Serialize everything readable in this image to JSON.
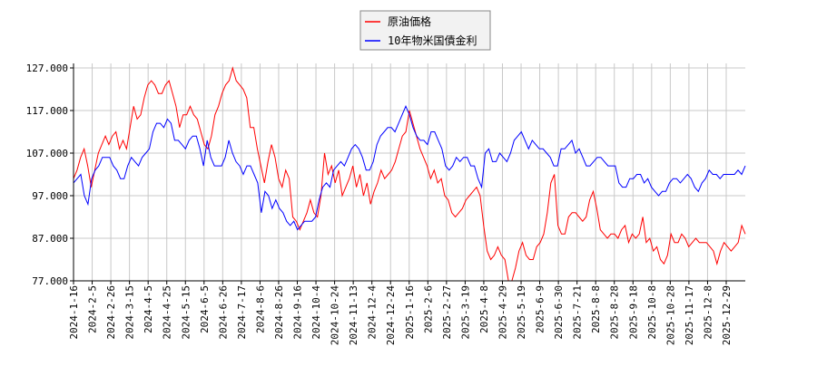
{
  "chart_data": {
    "type": "line",
    "title": "",
    "xlabel": "",
    "ylabel": "",
    "ylim": [
      77,
      127
    ],
    "y_ticks": [
      "77.000",
      "87.000",
      "97.000",
      "107.000",
      "117.000",
      "127.000"
    ],
    "grid": true,
    "legend_position": "top-center",
    "x_ticks": [
      "2024-1-16",
      "2024-2-5",
      "2024-2-26",
      "2024-3-15",
      "2024-4-5",
      "2024-4-25",
      "2024-5-15",
      "2024-6-5",
      "2024-6-26",
      "2024-7-17",
      "2024-8-6",
      "2024-8-26",
      "2024-9-16",
      "2024-10-4",
      "2024-10-24",
      "2024-11-13",
      "2024-12-4",
      "2024-12-24",
      "2025-1-16",
      "2025-2-6",
      "2025-2-27",
      "2025-3-19",
      "2025-4-8",
      "2025-4-29",
      "2025-5-19",
      "2025-6-9",
      "2025-6-30",
      "2025-7-21",
      "2025-8-8",
      "2025-8-28",
      "2025-9-18",
      "2025-10-8",
      "2025-10-28",
      "2025-11-17",
      "2025-12-8",
      "2025-12-29"
    ],
    "series": [
      {
        "name": "原油価格",
        "color": "#ff0000",
        "values": [
          101,
          103,
          106,
          108,
          104,
          99,
          103,
          107,
          109,
          111,
          109,
          111,
          112,
          108,
          110,
          108,
          113,
          118,
          115,
          116,
          120,
          123,
          124,
          123,
          121,
          121,
          123,
          124,
          121,
          118,
          113,
          116,
          116,
          118,
          116,
          115,
          112,
          109,
          108,
          111,
          116,
          118,
          121,
          123,
          124,
          127,
          124,
          123,
          122,
          120,
          113,
          113,
          108,
          104,
          100,
          105,
          109,
          106,
          101,
          99,
          103,
          101,
          92,
          91,
          89,
          91,
          93,
          96,
          93,
          92,
          97,
          107,
          102,
          104,
          100,
          103,
          97,
          99,
          101,
          104,
          99,
          102,
          97,
          100,
          95,
          98,
          100,
          103,
          101,
          102,
          103,
          105,
          108,
          111,
          112,
          117,
          114,
          111,
          108,
          106,
          104,
          101,
          103,
          100,
          101,
          97,
          96,
          93,
          92,
          93,
          94,
          96,
          97,
          98,
          99,
          97,
          90,
          84,
          82,
          83,
          85,
          83,
          82,
          77,
          77,
          80,
          84,
          86,
          83,
          82,
          82,
          85,
          86,
          88,
          93,
          100,
          102,
          90,
          88,
          88,
          92,
          93,
          93,
          92,
          91,
          92,
          96,
          98,
          94,
          89,
          88,
          87,
          88,
          88,
          87,
          89,
          90,
          86,
          88,
          87,
          88,
          92,
          86,
          87,
          84,
          85,
          82,
          81,
          83,
          88,
          86,
          86,
          88,
          87,
          85,
          86,
          87,
          86,
          86,
          86,
          85,
          84,
          81,
          84,
          86,
          85,
          84,
          85,
          86,
          90,
          88
        ]
      },
      {
        "name": "10年物米国債金利",
        "color": "#0000ff",
        "values": [
          100,
          101,
          102,
          97,
          95,
          101,
          103,
          104,
          106,
          106,
          106,
          104,
          103,
          101,
          101,
          104,
          106,
          105,
          104,
          106,
          107,
          108,
          112,
          114,
          114,
          113,
          115,
          114,
          110,
          110,
          109,
          108,
          110,
          111,
          111,
          108,
          104,
          110,
          106,
          104,
          104,
          104,
          106,
          110,
          107,
          105,
          104,
          102,
          104,
          104,
          102,
          100,
          93,
          98,
          97,
          94,
          96,
          94,
          93,
          91,
          90,
          91,
          89,
          90,
          91,
          91,
          91,
          92,
          96,
          99,
          100,
          99,
          103,
          104,
          105,
          104,
          106,
          108,
          109,
          108,
          106,
          103,
          103,
          105,
          109,
          111,
          112,
          113,
          113,
          112,
          114,
          116,
          118,
          116,
          113,
          111,
          110,
          110,
          109,
          112,
          112,
          110,
          108,
          104,
          103,
          104,
          106,
          105,
          106,
          106,
          104,
          104,
          101,
          99,
          107,
          108,
          105,
          105,
          107,
          106,
          105,
          107,
          110,
          111,
          112,
          110,
          108,
          110,
          109,
          108,
          108,
          107,
          106,
          104,
          104,
          108,
          108,
          109,
          110,
          107,
          108,
          106,
          104,
          104,
          105,
          106,
          106,
          105,
          104,
          104,
          104,
          100,
          99,
          99,
          101,
          101,
          102,
          102,
          100,
          101,
          99,
          98,
          97,
          98,
          98,
          100,
          101,
          101,
          100,
          101,
          102,
          101,
          99,
          98,
          100,
          101,
          103,
          102,
          102,
          101,
          102,
          102,
          102,
          102,
          103,
          102,
          104
        ]
      }
    ]
  }
}
